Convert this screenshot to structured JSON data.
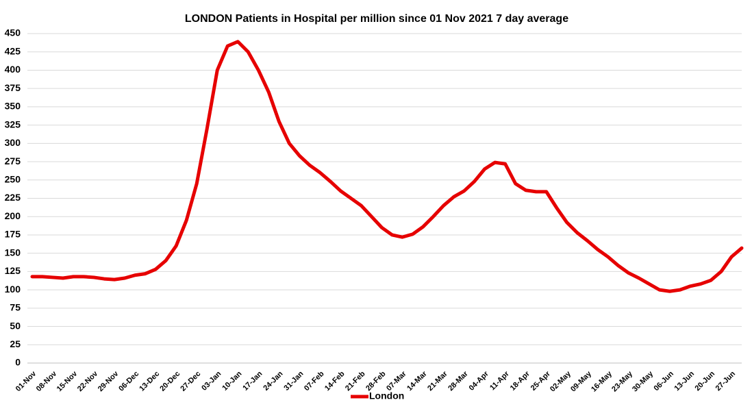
{
  "chart_data": {
    "type": "line",
    "title": "LONDON Patients in Hospital per million since 01 Nov 2021 7 day average",
    "categories": [
      "01-Nov",
      null,
      "08-Nov",
      null,
      "15-Nov",
      null,
      "22-Nov",
      null,
      "29-Nov",
      null,
      "06-Dec",
      null,
      "13-Dec",
      null,
      "20-Dec",
      null,
      "27-Dec",
      null,
      "03-Jan",
      null,
      "10-Jan",
      null,
      "17-Jan",
      null,
      "24-Jan",
      null,
      "31-Jan",
      null,
      "07-Feb",
      null,
      "14-Feb",
      null,
      "21-Feb",
      null,
      "28-Feb",
      null,
      "07-Mar",
      null,
      "14-Mar",
      null,
      "21-Mar",
      null,
      "28-Mar",
      null,
      "04-Apr",
      null,
      "11-Apr",
      null,
      "18-Apr",
      null,
      "25-Apr",
      null,
      "02-May",
      null,
      "09-May",
      null,
      "16-May",
      null,
      "23-May",
      null,
      "30-May",
      null,
      "06-Jun",
      null,
      "13-Jun",
      null,
      "20-Jun",
      null,
      "27-Jun",
      null
    ],
    "series": [
      {
        "name": "London",
        "color": "#e60000",
        "values": [
          118,
          118,
          117,
          116,
          118,
          118,
          117,
          115,
          114,
          116,
          120,
          122,
          128,
          140,
          160,
          195,
          245,
          320,
          400,
          433,
          439,
          425,
          400,
          370,
          330,
          300,
          283,
          270,
          260,
          248,
          235,
          225,
          215,
          200,
          185,
          175,
          172,
          176,
          186,
          200,
          215,
          227,
          235,
          248,
          265,
          274,
          272,
          245,
          236,
          234,
          234,
          212,
          192,
          178,
          167,
          155,
          145,
          133,
          123,
          116,
          108,
          100,
          98,
          100,
          105,
          108,
          113,
          125,
          145,
          157
        ]
      }
    ],
    "ylim": [
      0,
      450
    ],
    "yticks": [
      0,
      25,
      50,
      75,
      100,
      125,
      150,
      175,
      200,
      225,
      250,
      275,
      300,
      325,
      350,
      375,
      400,
      425,
      450
    ],
    "grid": true,
    "legend": "bottom"
  }
}
